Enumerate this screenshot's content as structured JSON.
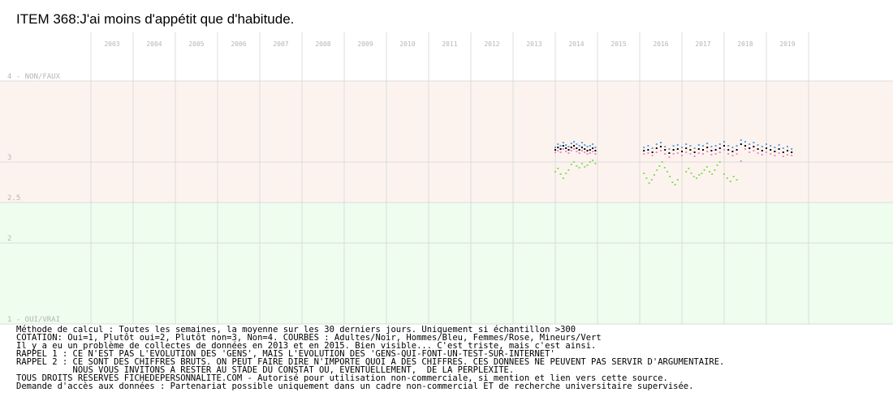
{
  "title": "ITEM 368:J'ai moins d'appétit que d'habitude.",
  "chart_data": {
    "type": "scatter",
    "x": [
      "2003",
      "2004",
      "2005",
      "2006",
      "2007",
      "2008",
      "2009",
      "2010",
      "2011",
      "2012",
      "2013",
      "2014",
      "2015",
      "2016",
      "2017",
      "2018",
      "2019"
    ],
    "ylim": [
      1,
      4
    ],
    "y_tick_labels": [
      {
        "value": 4,
        "label": "4 - NON/FAUX"
      },
      {
        "value": 3,
        "label": "3"
      },
      {
        "value": 2.5,
        "label": "2.5"
      },
      {
        "value": 2,
        "label": "2"
      },
      {
        "value": 1,
        "label": "1 - OUI/VRAI"
      }
    ],
    "bands": [
      {
        "from": 2.5,
        "to": 4,
        "color": "#fdf3ee"
      },
      {
        "from": 1,
        "to": 2.5,
        "color": "#eefdee"
      }
    ],
    "grid": true,
    "series": [
      {
        "color": "#5b9ee6",
        "segments": [
          {
            "x0": 2014.0,
            "x1": 2014.95,
            "points": [
              3.18,
              3.22,
              3.2,
              3.24,
              3.21,
              3.19,
              3.23,
              3.25,
              3.22,
              3.2,
              3.24,
              3.21,
              3.19,
              3.2,
              3.22,
              3.18
            ]
          },
          {
            "x0": 2016.1,
            "x1": 2019.6,
            "points": [
              3.18,
              3.2,
              3.17,
              3.22,
              3.24,
              3.19,
              3.16,
              3.2,
              3.21,
              3.18,
              3.22,
              3.2,
              3.17,
              3.21,
              3.2,
              3.23,
              3.19,
              3.2,
              3.22,
              3.25,
              3.2,
              3.18,
              3.2,
              3.27,
              3.25,
              3.22,
              3.24,
              3.21,
              3.19,
              3.22,
              3.2,
              3.18,
              3.21,
              3.17,
              3.19,
              3.16
            ]
          }
        ]
      },
      {
        "color": "#000000",
        "segments": [
          {
            "x0": 2014.0,
            "x1": 2014.95,
            "points": [
              3.15,
              3.18,
              3.16,
              3.2,
              3.17,
              3.15,
              3.18,
              3.2,
              3.17,
              3.15,
              3.18,
              3.16,
              3.14,
              3.15,
              3.17,
              3.14
            ]
          },
          {
            "x0": 2016.1,
            "x1": 2019.6,
            "points": [
              3.14,
              3.15,
              3.12,
              3.17,
              3.19,
              3.15,
              3.11,
              3.15,
              3.16,
              3.13,
              3.17,
              3.15,
              3.12,
              3.16,
              3.15,
              3.18,
              3.14,
              3.15,
              3.17,
              3.2,
              3.15,
              3.13,
              3.15,
              3.22,
              3.2,
              3.17,
              3.19,
              3.16,
              3.14,
              3.17,
              3.15,
              3.13,
              3.16,
              3.12,
              3.14,
              3.12
            ]
          }
        ]
      },
      {
        "color": "#e98ad0",
        "segments": [
          {
            "x0": 2014.0,
            "x1": 2014.95,
            "points": [
              3.12,
              3.14,
              3.12,
              3.16,
              3.13,
              3.11,
              3.14,
              3.16,
              3.13,
              3.11,
              3.14,
              3.12,
              3.1,
              3.11,
              3.13,
              3.1
            ]
          },
          {
            "x0": 2016.1,
            "x1": 2019.6,
            "points": [
              3.1,
              3.11,
              3.08,
              3.12,
              3.14,
              3.1,
              3.06,
              3.1,
              3.11,
              3.08,
              3.12,
              3.1,
              3.07,
              3.11,
              3.1,
              3.13,
              3.09,
              3.1,
              3.12,
              3.15,
              3.1,
              3.08,
              3.1,
              3.01,
              3.16,
              3.12,
              3.14,
              3.11,
              3.09,
              3.12,
              3.1,
              3.08,
              3.11,
              3.07,
              3.09,
              3.08
            ]
          }
        ]
      },
      {
        "color": "#88dd66",
        "segments": [
          {
            "x0": 2014.0,
            "x1": 2014.95,
            "points": [
              2.88,
              2.92,
              2.85,
              2.8,
              2.86,
              2.9,
              2.97,
              3.0,
              2.95,
              2.93,
              2.98,
              2.94,
              2.96,
              3.0,
              3.02,
              2.98
            ]
          },
          {
            "x0": 2016.1,
            "x1": 2016.9,
            "points": [
              2.86,
              2.8,
              2.74,
              2.78,
              2.84,
              2.9,
              2.95,
              3.0,
              2.93,
              2.88,
              2.82,
              2.75,
              2.72,
              2.78
            ]
          },
          {
            "x0": 2017.1,
            "x1": 2017.9,
            "points": [
              2.88,
              2.92,
              2.86,
              2.82,
              2.8,
              2.84,
              2.86,
              2.9,
              2.94,
              2.88,
              2.85,
              2.9,
              2.96,
              3.0
            ]
          },
          {
            "x0": 2018.0,
            "x1": 2018.3,
            "points": [
              2.85,
              2.8,
              2.76,
              2.82,
              2.78
            ]
          }
        ]
      }
    ]
  },
  "footer": {
    "lines": [
      "Méthode de calcul : Toutes les semaines, la moyenne sur les 30 derniers jours. Uniquement si échantillon >300",
      "COTATION: Oui=1, Plutôt oui=2, Plutôt non=3, Non=4. COURBES : Adultes/Noir, Hommes/Bleu, Femmes/Rose, Mineurs/Vert",
      "Il y a eu un problème de collectes de données en 2013 et en 2015. Bien visible... C'est triste, mais c'est ainsi.",
      "RAPPEL 1 : CE N'EST PAS L'EVOLUTION DES 'GENS', MAIS L'EVOLUTION DES 'GENS-QUI-FONT-UN-TEST-SUR-INTERNET'",
      "RAPPEL 2 : CE SONT DES CHIFFRES BRUTS. ON PEUT FAIRE DIRE N'IMPORTE QUOI A DES CHIFFRES. CES DONNEES NE PEUVENT PAS SERVIR D'ARGUMENTAIRE.",
      "           NOUS VOUS INVITONS A RESTER AU STADE DU CONSTAT OU, EVENTUELLEMENT,  DE LA PERPLEXITE.",
      "TOUS DROITS RESERVES FICHEDEPERSONNALITE.COM - Autorisé pour utilisation non-commerciale, si mention et lien vers cette source.",
      "Demande d'accès aux données : Partenariat possible uniquement dans un cadre non-commercial ET de recherche universitaire supervisée."
    ]
  }
}
